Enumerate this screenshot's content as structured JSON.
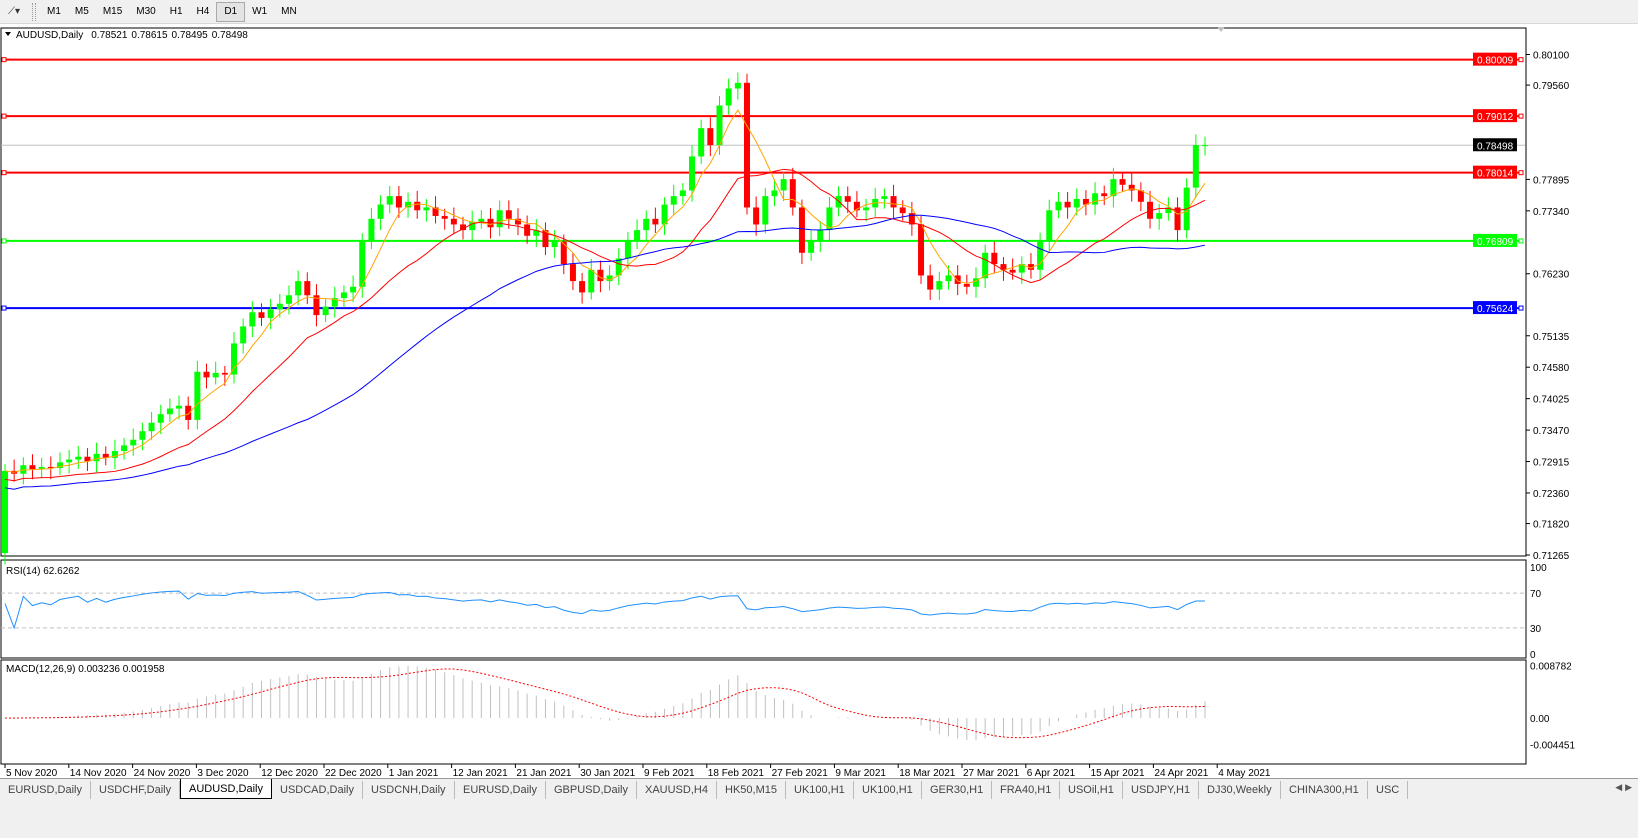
{
  "toolbar": {
    "timeframes": [
      "M1",
      "M5",
      "M15",
      "M30",
      "H1",
      "H4",
      "D1",
      "W1",
      "MN"
    ],
    "active": "D1"
  },
  "chart_header": {
    "symbol": "AUDUSD,Daily",
    "open": "0.78521",
    "high": "0.78615",
    "low": "0.78495",
    "close": "0.78498"
  },
  "price_axis": {
    "ticks": [
      "0.80100",
      "0.79560",
      "0.77895",
      "0.77340",
      "0.76230",
      "0.75135",
      "0.74580",
      "0.74025",
      "0.73470",
      "0.72915",
      "0.72360",
      "0.71820",
      "0.71265"
    ]
  },
  "levels": [
    {
      "price": 0.80009,
      "label": "0.80009",
      "color": "#ff0000"
    },
    {
      "price": 0.79012,
      "label": "0.79012",
      "color": "#ff0000"
    },
    {
      "price": 0.78014,
      "label": "0.78014",
      "color": "#ff0000"
    },
    {
      "price": 0.76809,
      "label": "0.76809",
      "color": "#00ff00"
    },
    {
      "price": 0.75624,
      "label": "0.75624",
      "color": "#0000ff"
    }
  ],
  "bid": {
    "price": 0.78498,
    "label": "0.78498"
  },
  "rsi": {
    "title": "RSI(14) 62.6262",
    "ticks": [
      "100",
      "70",
      "30",
      "0"
    ]
  },
  "macd": {
    "title": "MACD(12,26,9) 0.003236 0.001958",
    "ticks": [
      "0.008782",
      "0.00",
      "-0.004451"
    ]
  },
  "date_axis": [
    "5 Nov 2020",
    "14 Nov 2020",
    "24 Nov 2020",
    "3 Dec 2020",
    "12 Dec 2020",
    "22 Dec 2020",
    "1 Jan 2021",
    "12 Jan 2021",
    "21 Jan 2021",
    "30 Jan 2021",
    "9 Feb 2021",
    "18 Feb 2021",
    "27 Feb 2021",
    "9 Mar 2021",
    "18 Mar 2021",
    "27 Mar 2021",
    "6 Apr 2021",
    "15 Apr 2021",
    "24 Apr 2021",
    "4 May 2021"
  ],
  "chart_data": {
    "type": "candlestick",
    "first_open": 0.713,
    "closes": [
      0.7275,
      0.727,
      0.7285,
      0.7278,
      0.7282,
      0.728,
      0.729,
      0.7295,
      0.73,
      0.7292,
      0.7305,
      0.7298,
      0.731,
      0.732,
      0.733,
      0.7345,
      0.736,
      0.7375,
      0.7385,
      0.739,
      0.7365,
      0.745,
      0.744,
      0.7448,
      0.7445,
      0.75,
      0.753,
      0.7555,
      0.7545,
      0.756,
      0.757,
      0.7585,
      0.761,
      0.7585,
      0.755,
      0.7565,
      0.758,
      0.759,
      0.76,
      0.768,
      0.772,
      0.7745,
      0.776,
      0.774,
      0.775,
      0.7735,
      0.774,
      0.7725,
      0.772,
      0.771,
      0.77,
      0.7715,
      0.772,
      0.7705,
      0.7735,
      0.772,
      0.771,
      0.769,
      0.77,
      0.767,
      0.768,
      0.764,
      0.761,
      0.759,
      0.763,
      0.761,
      0.762,
      0.765,
      0.768,
      0.77,
      0.772,
      0.771,
      0.7745,
      0.776,
      0.777,
      0.783,
      0.788,
      0.785,
      0.792,
      0.795,
      0.796,
      0.774,
      0.771,
      0.776,
      0.777,
      0.779,
      0.774,
      0.766,
      0.768,
      0.77,
      0.774,
      0.776,
      0.775,
      0.7735,
      0.774,
      0.7755,
      0.776,
      0.774,
      0.773,
      0.771,
      0.762,
      0.7595,
      0.761,
      0.762,
      0.7605,
      0.76,
      0.7615,
      0.766,
      0.764,
      0.763,
      0.7625,
      0.764,
      0.763,
      0.768,
      0.7735,
      0.775,
      0.774,
      0.7755,
      0.7745,
      0.7765,
      0.776,
      0.779,
      0.778,
      0.777,
      0.775,
      0.772,
      0.773,
      0.774,
      0.77,
      0.7775,
      0.785,
      0.785
    ],
    "ylim": [
      0.71265,
      0.801
    ],
    "colors": {
      "up": "#00ff00",
      "down": "#ff0000",
      "ma_fast": "#ffa500",
      "ma_mid": "#ff0000",
      "ma_slow": "#0000ff",
      "rsi": "#1e90ff",
      "macd_signal": "#ff0000",
      "macd_hist": "#c0c0c0"
    }
  },
  "tabs": [
    "EURUSD,Daily",
    "USDCHF,Daily",
    "AUDUSD,Daily",
    "USDCAD,Daily",
    "USDCNH,Daily",
    "EURUSD,Daily",
    "GBPUSD,Daily",
    "XAUUSD,H4",
    "HK50,M15",
    "UK100,H1",
    "UK100,H1",
    "GER30,H1",
    "FRA40,H1",
    "USOil,H1",
    "USDJPY,H1",
    "DJ30,Weekly",
    "CHINA300,H1",
    "USC"
  ],
  "active_tab": "AUDUSD,Daily"
}
